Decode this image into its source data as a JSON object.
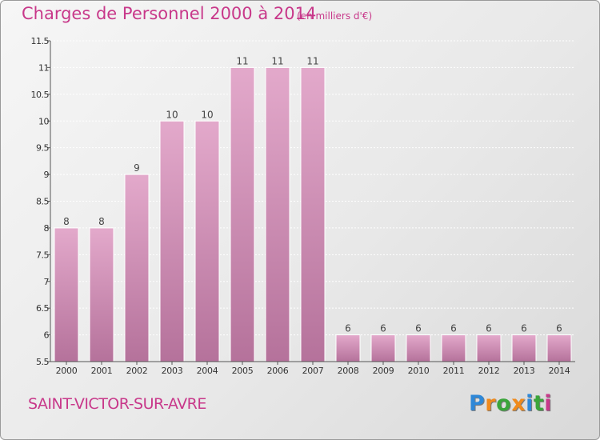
{
  "title": "Charges de Personnel 2000 à 2014",
  "subtitle": "(en milliers d'€)",
  "place_name": "SAINT-VICTOR-SUR-AVRE",
  "logo": {
    "text": "Proxiti",
    "letters": [
      {
        "char": "P",
        "color": "#2e88d8"
      },
      {
        "char": "r",
        "color": "#f08a1c"
      },
      {
        "char": "o",
        "color": "#3aa53a"
      },
      {
        "char": "x",
        "color": "#f08a1c"
      },
      {
        "char": "i",
        "color": "#2e88d8"
      },
      {
        "char": "t",
        "color": "#3aa53a"
      },
      {
        "char": "i",
        "color": "#c8388a"
      }
    ]
  },
  "colors": {
    "accent": "#c8388a",
    "bar_top": "#e3a9cb",
    "bar_bottom": "#b5729b"
  },
  "chart_data": {
    "type": "bar",
    "categories": [
      "2000",
      "2001",
      "2002",
      "2003",
      "2004",
      "2005",
      "2006",
      "2007",
      "2008",
      "2009",
      "2010",
      "2011",
      "2012",
      "2013",
      "2014"
    ],
    "values": [
      8,
      8,
      9,
      10,
      10,
      11,
      11,
      11,
      6,
      6,
      6,
      6,
      6,
      6,
      6
    ],
    "data_labels": [
      "8",
      "8",
      "9",
      "10",
      "10",
      "11",
      "11",
      "11",
      "6",
      "6",
      "6",
      "6",
      "6",
      "6",
      "6"
    ],
    "title": "Charges de Personnel 2000 à 2014",
    "xlabel": "",
    "ylabel": "",
    "ylim": [
      5.5,
      11.5
    ],
    "yticks": [
      5.5,
      6,
      6.5,
      7,
      7.5,
      8,
      8.5,
      9,
      9.5,
      10,
      10.5,
      11,
      11.5
    ],
    "ytick_labels": [
      "5.5",
      "6",
      "6.5",
      "7",
      "7.5",
      "8",
      "8.5",
      "9",
      "9.5",
      "10",
      "10.5",
      "11",
      "11.5"
    ],
    "grid": true
  }
}
